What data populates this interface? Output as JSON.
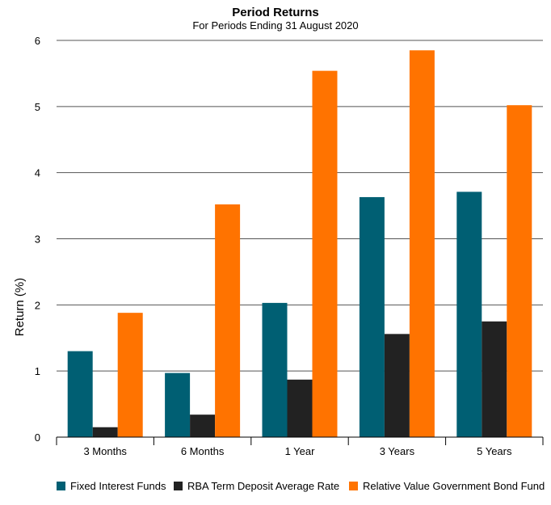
{
  "chart_data": {
    "type": "bar",
    "title": "Period Returns",
    "subtitle": "For Periods Ending 31 August 2020",
    "xlabel": "",
    "ylabel": "Return (%)",
    "ylim": [
      0,
      6
    ],
    "yticks": [
      "0",
      "1",
      "2",
      "3",
      "4",
      "5",
      "6"
    ],
    "grid": true,
    "legend_position": "bottom",
    "categories": [
      "3 Months",
      "6 Months",
      "1 Year",
      "3 Years",
      "5 Years"
    ],
    "series": [
      {
        "name": "Fixed Interest Funds",
        "color": "#005f73",
        "values": [
          1.3,
          0.97,
          2.03,
          3.63,
          3.71
        ]
      },
      {
        "name": "RBA Term Deposit Average Rate",
        "color": "#222222",
        "values": [
          0.15,
          0.34,
          0.87,
          1.56,
          1.75
        ]
      },
      {
        "name": "Relative Value Government Bond Fund",
        "color": "#ff7300",
        "values": [
          1.88,
          3.52,
          5.54,
          5.85,
          5.02
        ]
      }
    ]
  }
}
